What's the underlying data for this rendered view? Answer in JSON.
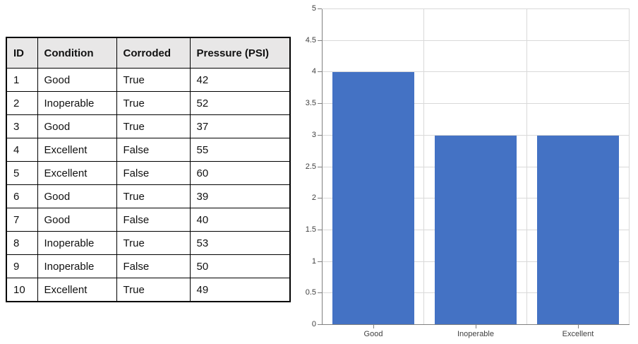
{
  "table": {
    "headers": [
      "ID",
      "Condition",
      "Corroded",
      "Pressure (PSI)"
    ],
    "rows": [
      [
        "1",
        "Good",
        "True",
        "42"
      ],
      [
        "2",
        "Inoperable",
        "True",
        "52"
      ],
      [
        "3",
        "Good",
        "True",
        "37"
      ],
      [
        "4",
        "Excellent",
        "False",
        "55"
      ],
      [
        "5",
        "Excellent",
        "False",
        "60"
      ],
      [
        "6",
        "Good",
        "True",
        "39"
      ],
      [
        "7",
        "Good",
        "False",
        "40"
      ],
      [
        "8",
        "Inoperable",
        "True",
        "53"
      ],
      [
        "9",
        "Inoperable",
        "False",
        "50"
      ],
      [
        "10",
        "Excellent",
        "True",
        "49"
      ]
    ]
  },
  "chart_data": {
    "type": "bar",
    "categories": [
      "Good",
      "Inoperable",
      "Excellent"
    ],
    "values": [
      4,
      3,
      3
    ],
    "title": "",
    "xlabel": "",
    "ylabel": "",
    "ylim": [
      0,
      5
    ],
    "ytick_step": 0.5,
    "ytick_labels": [
      "0",
      "0.5",
      "1",
      "1.5",
      "2",
      "2.5",
      "3",
      "3.5",
      "4",
      "4.5",
      "5"
    ],
    "grid": true,
    "legend": "none",
    "bar_color": "#4472C4",
    "gridline_color": "#D9D9D9",
    "axis_color": "#808080",
    "tick_label_color": "#404040"
  }
}
